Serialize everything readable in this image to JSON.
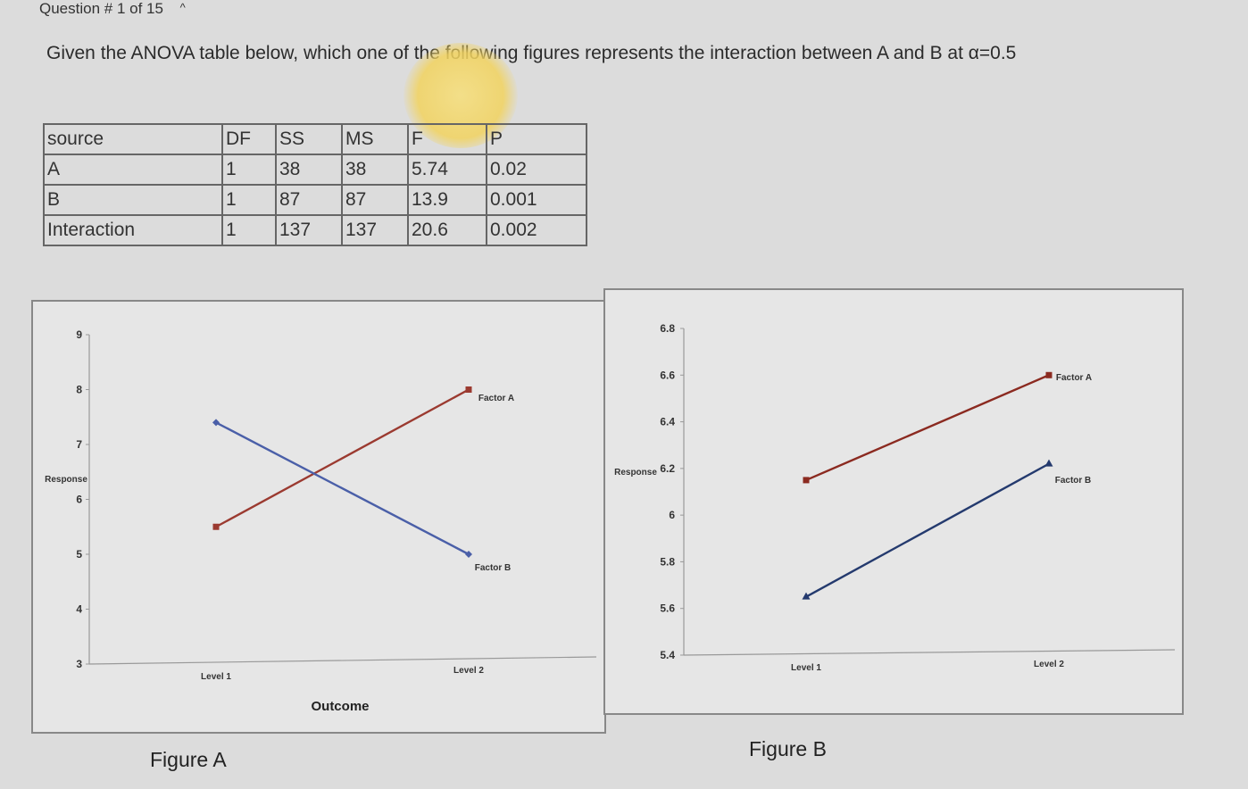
{
  "header": {
    "question_label": "Question # 1 of 15",
    "collapse_icon": "chevron-up-icon"
  },
  "prompt": "Given the ANOVA table below, which one of the following figures represents the interaction between A and B at α=0.5",
  "anova_table": {
    "headers": [
      "source",
      "DF",
      "SS",
      "MS",
      "F",
      "P"
    ],
    "rows": [
      [
        "A",
        "1",
        "38",
        "38",
        "5.74",
        "0.02"
      ],
      [
        "B",
        "1",
        "87",
        "87",
        "13.9",
        "0.001"
      ],
      [
        "Interaction",
        "1",
        "137",
        "137",
        "20.6",
        "0.002"
      ]
    ]
  },
  "figures": {
    "a_label": "Figure A",
    "b_label": "Figure B"
  },
  "chart_data": [
    {
      "type": "line",
      "x": [
        "Level 1",
        "Level 2"
      ],
      "xlabel": "Outcome",
      "ylabel": "Response",
      "ylim": [
        3,
        9
      ],
      "yticks": [
        3,
        4,
        5,
        6,
        7,
        8,
        9
      ],
      "series": [
        {
          "name": "Factor A",
          "values": [
            5.5,
            8.0
          ],
          "color": "#9b3a30",
          "marker": "square"
        },
        {
          "name": "Factor B",
          "values": [
            7.4,
            5.0
          ],
          "color": "#4a5fa8",
          "marker": "diamond"
        }
      ]
    },
    {
      "type": "line",
      "x": [
        "Level 1",
        "Level 2"
      ],
      "xlabel": "",
      "ylabel": "Response",
      "ylim": [
        5.4,
        6.8
      ],
      "yticks": [
        5.4,
        5.6,
        5.8,
        6,
        6.2,
        6.4,
        6.6,
        6.8
      ],
      "series": [
        {
          "name": "Factor A",
          "values": [
            6.15,
            6.6
          ],
          "color": "#8b2a20",
          "marker": "square"
        },
        {
          "name": "Factor B",
          "values": [
            5.65,
            6.22
          ],
          "color": "#243a6e",
          "marker": "triangle"
        }
      ]
    }
  ]
}
